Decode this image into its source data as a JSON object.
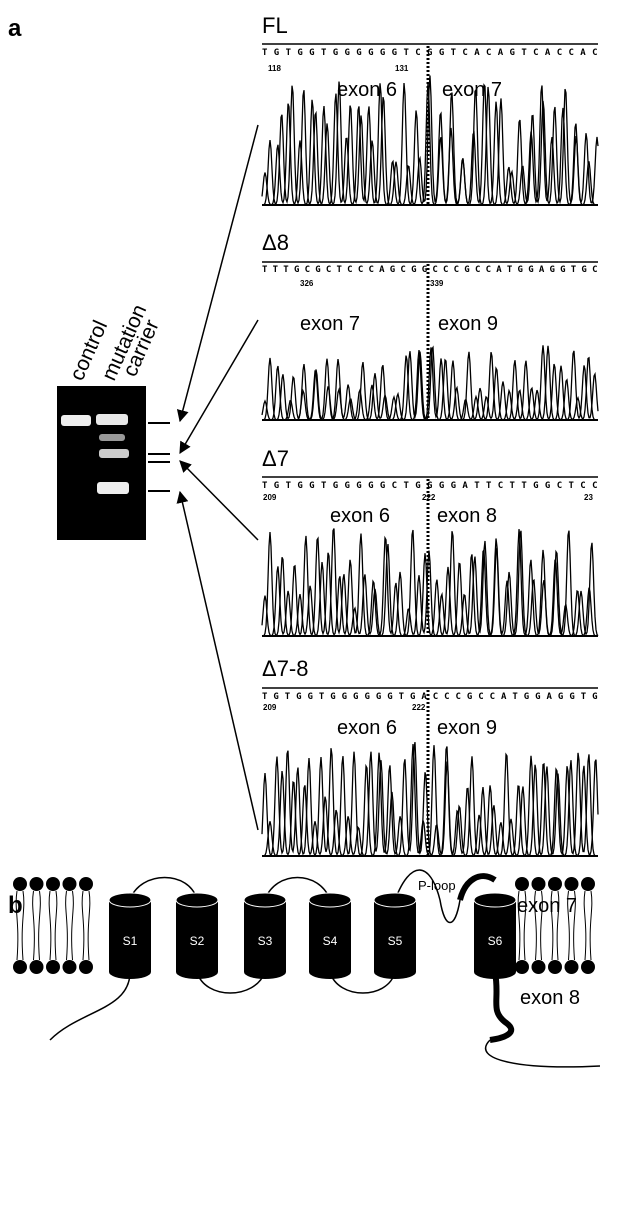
{
  "panel_a": {
    "label": "a",
    "gel_labels": {
      "control": "control",
      "mutation": "mutation",
      "carrier": "carrier"
    },
    "traces": [
      {
        "title": "FL",
        "sequence": "TGTGGTGGGGGGTCGGTCACAGTCACCAC",
        "positions": [
          "118",
          "131"
        ],
        "exons": [
          "exon 6",
          "exon 7"
        ]
      },
      {
        "title": "Δ8",
        "sequence": "TTTGCGCTCCCAGCGGCCCGCCATGGAGGTGC",
        "positions": [
          "326",
          "339"
        ],
        "exons": [
          "exon 7",
          "exon 9"
        ]
      },
      {
        "title": "Δ7",
        "sequence": "TGTGGTGGGGGCTGGGGATTCTTGGCTCC",
        "positions": [
          "209",
          "222",
          "23"
        ],
        "exons": [
          "exon 6",
          "exon 8"
        ]
      },
      {
        "title": "Δ7-8",
        "sequence": "TGTGGTGGGGGGTGACCCGCCATGGAGGTG",
        "positions": [
          "209",
          "222"
        ],
        "exons": [
          "exon 6",
          "exon 9"
        ]
      }
    ]
  },
  "panel_b": {
    "label": "b",
    "segments": [
      "S1",
      "S2",
      "S3",
      "S4",
      "S5",
      "S6"
    ],
    "p_loop": "P-loop",
    "exon_top": "exon 7",
    "exon_bottom": "exon 8"
  }
}
